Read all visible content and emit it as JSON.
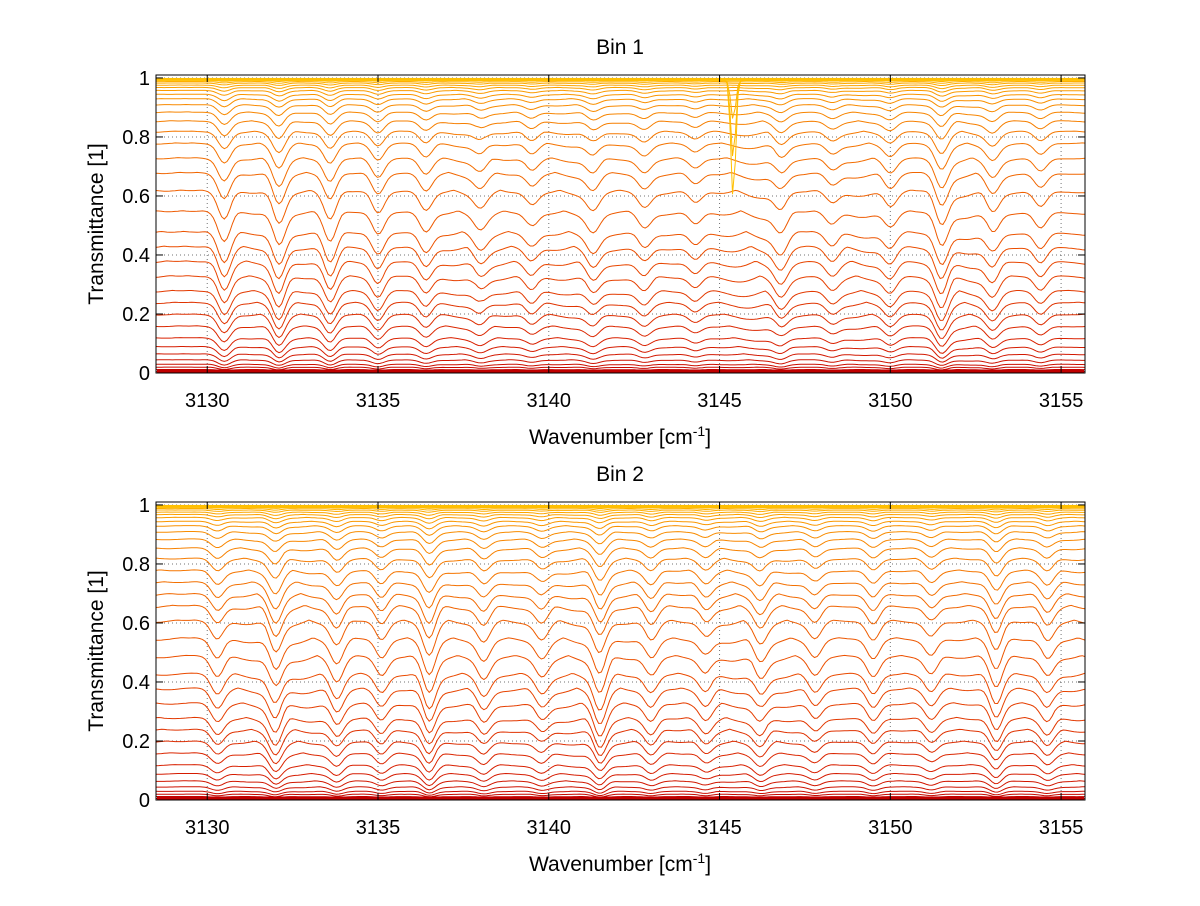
{
  "figure": {
    "background": "#ffffff"
  },
  "chart_data": [
    {
      "type": "line",
      "title": "Bin 1",
      "xlabel": "Wavenumber [cm",
      "xlabel_superscript": "-1",
      "xlabel_suffix": "]",
      "ylabel": "Transmittance [1]",
      "xlim": [
        3128.5,
        3155.7
      ],
      "ylim": [
        0,
        1.01
      ],
      "grid": true,
      "xticks": [
        3130,
        3135,
        3140,
        3145,
        3150,
        3155
      ],
      "xtick_labels": [
        "3130",
        "3135",
        "3140",
        "3145",
        "3150",
        "3155"
      ],
      "yticks": [
        0,
        0.2,
        0.4,
        0.6,
        0.8,
        1
      ],
      "ytick_labels": [
        "0",
        "0.2",
        "0.4",
        "0.6",
        "0.8",
        "1"
      ],
      "colormap": [
        "#c00000",
        "#d82000",
        "#ea4a00",
        "#f57600",
        "#fb9c00",
        "#ffbf00"
      ],
      "baseline_levels": [
        0.005,
        0.012,
        0.02,
        0.03,
        0.045,
        0.065,
        0.09,
        0.12,
        0.16,
        0.2,
        0.24,
        0.28,
        0.33,
        0.38,
        0.43,
        0.48,
        0.55,
        0.62,
        0.68,
        0.73,
        0.78,
        0.82,
        0.855,
        0.885,
        0.91,
        0.93,
        0.945,
        0.958,
        0.968,
        0.976,
        0.983,
        0.988,
        0.992,
        0.995,
        0.997
      ],
      "absorption_lines": [
        {
          "x": 3130.5,
          "depth": 0.9
        },
        {
          "x": 3132.1,
          "depth": 1.0
        },
        {
          "x": 3133.6,
          "depth": 0.9
        },
        {
          "x": 3135.0,
          "depth": 0.7
        },
        {
          "x": 3136.4,
          "depth": 0.6
        },
        {
          "x": 3138.0,
          "depth": 0.4
        },
        {
          "x": 3139.5,
          "depth": 0.45
        },
        {
          "x": 3141.3,
          "depth": 0.5
        },
        {
          "x": 3142.8,
          "depth": 0.45
        },
        {
          "x": 3144.3,
          "depth": 0.4
        },
        {
          "x": 3146.8,
          "depth": 0.55
        },
        {
          "x": 3148.3,
          "depth": 0.4
        },
        {
          "x": 3150.0,
          "depth": 0.5
        },
        {
          "x": 3151.5,
          "depth": 1.0
        },
        {
          "x": 3153.0,
          "depth": 0.6
        },
        {
          "x": 3154.4,
          "depth": 0.5
        }
      ],
      "spike": {
        "x": 3145.4,
        "min": 0.59
      }
    },
    {
      "type": "line",
      "title": "Bin 2",
      "xlabel": "Wavenumber [cm",
      "xlabel_superscript": "-1",
      "xlabel_suffix": "]",
      "ylabel": "Transmittance [1]",
      "xlim": [
        3128.5,
        3155.7
      ],
      "ylim": [
        0,
        1.01
      ],
      "grid": true,
      "xticks": [
        3130,
        3135,
        3140,
        3145,
        3150,
        3155
      ],
      "xtick_labels": [
        "3130",
        "3135",
        "3140",
        "3145",
        "3150",
        "3155"
      ],
      "yticks": [
        0,
        0.2,
        0.4,
        0.6,
        0.8,
        1
      ],
      "ytick_labels": [
        "0",
        "0.2",
        "0.4",
        "0.6",
        "0.8",
        "1"
      ],
      "colormap": [
        "#c00000",
        "#d82000",
        "#ea4a00",
        "#f57600",
        "#fb9c00",
        "#ffbf00"
      ],
      "baseline_levels": [
        0.005,
        0.012,
        0.02,
        0.03,
        0.045,
        0.065,
        0.09,
        0.12,
        0.16,
        0.2,
        0.24,
        0.28,
        0.33,
        0.38,
        0.43,
        0.49,
        0.55,
        0.61,
        0.66,
        0.7,
        0.74,
        0.78,
        0.82,
        0.855,
        0.885,
        0.91,
        0.93,
        0.945,
        0.958,
        0.968,
        0.976,
        0.983,
        0.988,
        0.992,
        0.995,
        0.997
      ],
      "absorption_lines": [
        {
          "x": 3130.3,
          "depth": 0.6
        },
        {
          "x": 3132.0,
          "depth": 0.9
        },
        {
          "x": 3133.8,
          "depth": 0.7
        },
        {
          "x": 3135.1,
          "depth": 0.6
        },
        {
          "x": 3136.5,
          "depth": 1.0
        },
        {
          "x": 3138.1,
          "depth": 0.6
        },
        {
          "x": 3139.8,
          "depth": 0.5
        },
        {
          "x": 3141.5,
          "depth": 1.0
        },
        {
          "x": 3143.0,
          "depth": 0.6
        },
        {
          "x": 3144.6,
          "depth": 0.5
        },
        {
          "x": 3146.2,
          "depth": 0.6
        },
        {
          "x": 3147.8,
          "depth": 0.5
        },
        {
          "x": 3149.5,
          "depth": 0.6
        },
        {
          "x": 3151.2,
          "depth": 0.5
        },
        {
          "x": 3153.1,
          "depth": 0.9
        },
        {
          "x": 3154.6,
          "depth": 0.6
        }
      ],
      "spike": null
    }
  ]
}
